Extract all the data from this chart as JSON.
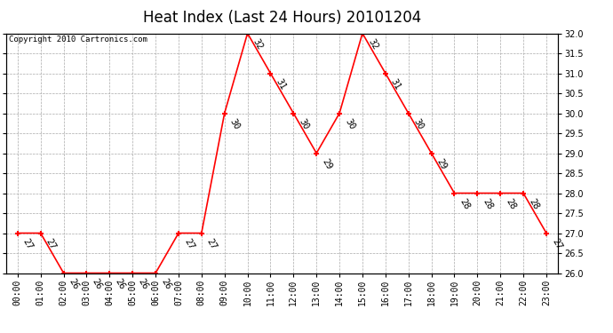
{
  "title": "Heat Index (Last 24 Hours) 20101204",
  "copyright": "Copyright 2010 Cartronics.com",
  "hours": [
    "00:00",
    "01:00",
    "02:00",
    "03:00",
    "04:00",
    "05:00",
    "06:00",
    "07:00",
    "08:00",
    "09:00",
    "10:00",
    "11:00",
    "12:00",
    "13:00",
    "14:00",
    "15:00",
    "16:00",
    "17:00",
    "18:00",
    "19:00",
    "20:00",
    "21:00",
    "22:00",
    "23:00"
  ],
  "values": [
    27,
    27,
    26,
    26,
    26,
    26,
    26,
    27,
    27,
    30,
    32,
    31,
    30,
    29,
    30,
    32,
    31,
    30,
    29,
    28,
    28,
    28,
    28,
    27
  ],
  "ylim": [
    26.0,
    32.0
  ],
  "yticks": [
    26.0,
    26.5,
    27.0,
    27.5,
    28.0,
    28.5,
    29.0,
    29.5,
    30.0,
    30.5,
    31.0,
    31.5,
    32.0
  ],
  "line_color": "red",
  "marker": "+",
  "marker_color": "red",
  "grid_color": "#aaaaaa",
  "bg_color": "white",
  "title_fontsize": 12,
  "label_fontsize": 7,
  "annotation_fontsize": 7.5
}
